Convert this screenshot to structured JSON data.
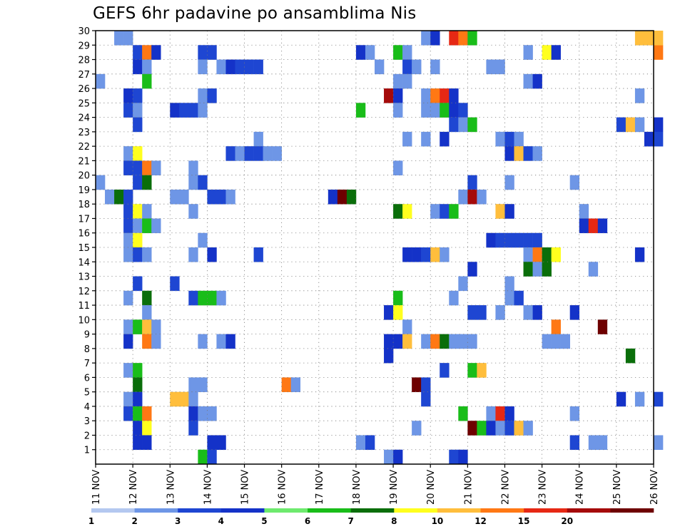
{
  "chart_data": {
    "type": "heatmap",
    "title": "GEFS 6hr padavine po ansamblima Nis",
    "xlabel": "",
    "ylabel": "",
    "x_ticks": [
      "11 NOV",
      "12 NOV",
      "13 NOV",
      "14 NOV",
      "15 NOV",
      "16 NOV",
      "17 NOV",
      "18 NOV",
      "19 NOV",
      "20 NOV",
      "21 NOV",
      "22 NOV",
      "23 NOV",
      "24 NOV",
      "25 NOV",
      "26 NOV"
    ],
    "y_ticks": [
      "1",
      "2",
      "3",
      "4",
      "5",
      "6",
      "7",
      "8",
      "9",
      "10",
      "11",
      "12",
      "13",
      "14",
      "15",
      "16",
      "17",
      "18",
      "19",
      "20",
      "21",
      "22",
      "23",
      "24",
      "25",
      "26",
      "27",
      "28",
      "29",
      "30"
    ],
    "xlim": [
      "11 NOV",
      "26 NOV"
    ],
    "ylim": [
      0,
      30
    ],
    "grid": true,
    "colorbar": {
      "labels": [
        "1",
        "2",
        "3",
        "4",
        "5",
        "6",
        "7",
        "8",
        "10",
        "12",
        "15",
        "20"
      ],
      "colors": [
        "#b4c8f0",
        "#6e96e6",
        "#1e46d2",
        "#1432c8",
        "#6eea6e",
        "#19bd19",
        "#0a6e0a",
        "#ffff1e",
        "#ffbe3c",
        "#ff7814",
        "#e62814",
        "#a50a0a",
        "#6e0000"
      ]
    },
    "cells": [
      [
        "11 NOV 12Z",
        30,
        1
      ],
      [
        "11 NOV 18Z",
        30,
        1
      ],
      [
        "12 NOV 00Z",
        29,
        2
      ],
      [
        "12 NOV 06Z",
        29,
        9
      ],
      [
        "12 NOV 12Z",
        29,
        3
      ],
      [
        "13 NOV 18Z",
        29,
        2
      ],
      [
        "14 NOV 00Z",
        29,
        2
      ],
      [
        "18 NOV 00Z",
        29,
        3
      ],
      [
        "18 NOV 06Z",
        29,
        1
      ],
      [
        "19 NOV 00Z",
        29,
        5
      ],
      [
        "19 NOV 06Z",
        29,
        1
      ],
      [
        "22 NOV 12Z",
        29,
        1
      ],
      [
        "23 NOV 00Z",
        29,
        7
      ],
      [
        "23 NOV 06Z",
        29,
        3
      ],
      [
        "26 NOV 00Z",
        29,
        9
      ],
      [
        "26 NOV 00Z",
        30,
        8
      ],
      [
        "25 NOV 12Z",
        30,
        8
      ],
      [
        "25 NOV 18Z",
        30,
        8
      ],
      [
        "19 NOV 18Z",
        30,
        1
      ],
      [
        "20 NOV 00Z",
        30,
        3
      ],
      [
        "20 NOV 12Z",
        30,
        10
      ],
      [
        "20 NOV 18Z",
        30,
        9
      ],
      [
        "21 NOV 00Z",
        30,
        5
      ],
      [
        "12 NOV 00Z",
        28,
        3
      ],
      [
        "12 NOV 06Z",
        28,
        1
      ],
      [
        "13 NOV 18Z",
        28,
        1
      ],
      [
        "14 NOV 06Z",
        28,
        1
      ],
      [
        "14 NOV 12Z",
        28,
        3
      ],
      [
        "14 NOV 18Z",
        28,
        2
      ],
      [
        "15 NOV 00Z",
        28,
        2
      ],
      [
        "15 NOV 06Z",
        28,
        2
      ],
      [
        "18 NOV 12Z",
        28,
        1
      ],
      [
        "19 NOV 06Z",
        28,
        2
      ],
      [
        "19 NOV 12Z",
        28,
        1
      ],
      [
        "20 NOV 00Z",
        28,
        1
      ],
      [
        "21 NOV 12Z",
        28,
        1
      ],
      [
        "21 NOV 18Z",
        28,
        1
      ],
      [
        "11 NOV 00Z",
        27,
        1
      ],
      [
        "12 NOV 06Z",
        27,
        5
      ],
      [
        "19 NOV 00Z",
        27,
        1
      ],
      [
        "19 NOV 06Z",
        27,
        1
      ],
      [
        "22 NOV 12Z",
        27,
        1
      ],
      [
        "22 NOV 18Z",
        27,
        3
      ],
      [
        "11 NOV 18Z",
        26,
        3
      ],
      [
        "12 NOV 00Z",
        26,
        2
      ],
      [
        "13 NOV 18Z",
        26,
        1
      ],
      [
        "14 NOV 00Z",
        26,
        2
      ],
      [
        "18 NOV 18Z",
        26,
        11
      ],
      [
        "19 NOV 00Z",
        26,
        3
      ],
      [
        "19 NOV 18Z",
        26,
        1
      ],
      [
        "20 NOV 00Z",
        26,
        9
      ],
      [
        "20 NOV 06Z",
        26,
        10
      ],
      [
        "20 NOV 12Z",
        26,
        3
      ],
      [
        "25 NOV 12Z",
        26,
        1
      ],
      [
        "11 NOV 18Z",
        25,
        2
      ],
      [
        "12 NOV 00Z",
        25,
        1
      ],
      [
        "13 NOV 00Z",
        25,
        3
      ],
      [
        "13 NOV 06Z",
        25,
        2
      ],
      [
        "13 NOV 12Z",
        25,
        2
      ],
      [
        "13 NOV 18Z",
        25,
        1
      ],
      [
        "18 NOV 00Z",
        25,
        5
      ],
      [
        "19 NOV 00Z",
        25,
        1
      ],
      [
        "19 NOV 18Z",
        25,
        1
      ],
      [
        "20 NOV 00Z",
        25,
        1
      ],
      [
        "20 NOV 06Z",
        25,
        5
      ],
      [
        "20 NOV 12Z",
        25,
        3
      ],
      [
        "20 NOV 18Z",
        25,
        2
      ],
      [
        "12 NOV 00Z",
        24,
        2
      ],
      [
        "20 NOV 12Z",
        24,
        2
      ],
      [
        "20 NOV 18Z",
        24,
        1
      ],
      [
        "21 NOV 00Z",
        24,
        5
      ],
      [
        "25 NOV 00Z",
        24,
        2
      ],
      [
        "25 NOV 06Z",
        24,
        8
      ],
      [
        "25 NOV 12Z",
        24,
        1
      ],
      [
        "26 NOV 00Z",
        24,
        3
      ],
      [
        "15 NOV 06Z",
        23,
        1
      ],
      [
        "19 NOV 06Z",
        23,
        1
      ],
      [
        "19 NOV 18Z",
        23,
        1
      ],
      [
        "20 NOV 06Z",
        23,
        3
      ],
      [
        "21 NOV 18Z",
        23,
        1
      ],
      [
        "22 NOV 00Z",
        23,
        2
      ],
      [
        "22 NOV 06Z",
        23,
        1
      ],
      [
        "25 NOV 18Z",
        23,
        3
      ],
      [
        "26 NOV 00Z",
        23,
        2
      ],
      [
        "11 NOV 18Z",
        22,
        1
      ],
      [
        "12 NOV 00Z",
        22,
        7
      ],
      [
        "14 NOV 12Z",
        22,
        2
      ],
      [
        "14 NOV 18Z",
        22,
        1
      ],
      [
        "15 NOV 00Z",
        22,
        2
      ],
      [
        "15 NOV 06Z",
        22,
        2
      ],
      [
        "15 NOV 12Z",
        22,
        1
      ],
      [
        "15 NOV 18Z",
        22,
        1
      ],
      [
        "22 NOV 00Z",
        22,
        3
      ],
      [
        "22 NOV 06Z",
        22,
        8
      ],
      [
        "22 NOV 12Z",
        22,
        2
      ],
      [
        "22 NOV 18Z",
        22,
        1
      ],
      [
        "11 NOV 18Z",
        21,
        2
      ],
      [
        "12 NOV 00Z",
        21,
        2
      ],
      [
        "12 NOV 06Z",
        21,
        9
      ],
      [
        "12 NOV 12Z",
        21,
        1
      ],
      [
        "13 NOV 12Z",
        21,
        1
      ],
      [
        "19 NOV 00Z",
        21,
        1
      ],
      [
        "11 NOV 00Z",
        20,
        1
      ],
      [
        "12 NOV 00Z",
        20,
        2
      ],
      [
        "12 NOV 06Z",
        20,
        6
      ],
      [
        "13 NOV 12Z",
        20,
        1
      ],
      [
        "13 NOV 18Z",
        20,
        2
      ],
      [
        "21 NOV 00Z",
        20,
        2
      ],
      [
        "22 NOV 00Z",
        20,
        1
      ],
      [
        "23 NOV 18Z",
        20,
        1
      ],
      [
        "11 NOV 06Z",
        19,
        1
      ],
      [
        "11 NOV 12Z",
        19,
        6
      ],
      [
        "11 NOV 18Z",
        19,
        2
      ],
      [
        "13 NOV 00Z",
        19,
        1
      ],
      [
        "13 NOV 06Z",
        19,
        1
      ],
      [
        "14 NOV 00Z",
        19,
        2
      ],
      [
        "14 NOV 06Z",
        19,
        2
      ],
      [
        "14 NOV 12Z",
        19,
        1
      ],
      [
        "17 NOV 06Z",
        19,
        3
      ],
      [
        "17 NOV 12Z",
        19,
        12
      ],
      [
        "17 NOV 18Z",
        19,
        6
      ],
      [
        "20 NOV 18Z",
        19,
        1
      ],
      [
        "21 NOV 00Z",
        19,
        11
      ],
      [
        "21 NOV 06Z",
        19,
        1
      ],
      [
        "11 NOV 18Z",
        18,
        2
      ],
      [
        "12 NOV 00Z",
        18,
        7
      ],
      [
        "12 NOV 06Z",
        18,
        1
      ],
      [
        "13 NOV 12Z",
        18,
        1
      ],
      [
        "19 NOV 00Z",
        18,
        6
      ],
      [
        "19 NOV 06Z",
        18,
        7
      ],
      [
        "20 NOV 00Z",
        18,
        1
      ],
      [
        "20 NOV 06Z",
        18,
        2
      ],
      [
        "20 NOV 12Z",
        18,
        5
      ],
      [
        "21 NOV 18Z",
        18,
        8
      ],
      [
        "22 NOV 00Z",
        18,
        3
      ],
      [
        "24 NOV 00Z",
        18,
        1
      ],
      [
        "11 NOV 18Z",
        17,
        2
      ],
      [
        "12 NOV 00Z",
        17,
        1
      ],
      [
        "12 NOV 06Z",
        17,
        5
      ],
      [
        "12 NOV 12Z",
        17,
        1
      ],
      [
        "24 NOV 00Z",
        17,
        3
      ],
      [
        "24 NOV 06Z",
        17,
        10
      ],
      [
        "24 NOV 12Z",
        17,
        3
      ],
      [
        "11 NOV 18Z",
        16,
        1
      ],
      [
        "12 NOV 00Z",
        16,
        7
      ],
      [
        "13 NOV 18Z",
        16,
        1
      ],
      [
        "22 NOV 00Z",
        16,
        2
      ],
      [
        "22 NOV 06Z",
        16,
        2
      ],
      [
        "22 NOV 12Z",
        16,
        2
      ],
      [
        "22 NOV 18Z",
        16,
        2
      ],
      [
        "21 NOV 12Z",
        16,
        3
      ],
      [
        "21 NOV 18Z",
        16,
        2
      ],
      [
        "11 NOV 18Z",
        15,
        1
      ],
      [
        "12 NOV 00Z",
        15,
        2
      ],
      [
        "12 NOV 06Z",
        15,
        1
      ],
      [
        "13 NOV 12Z",
        15,
        1
      ],
      [
        "14 NOV 00Z",
        15,
        3
      ],
      [
        "15 NOV 06Z",
        15,
        2
      ],
      [
        "19 NOV 06Z",
        15,
        3
      ],
      [
        "19 NOV 12Z",
        15,
        3
      ],
      [
        "19 NOV 18Z",
        15,
        2
      ],
      [
        "20 NOV 00Z",
        15,
        8
      ],
      [
        "20 NOV 06Z",
        15,
        1
      ],
      [
        "22 NOV 12Z",
        15,
        1
      ],
      [
        "22 NOV 18Z",
        15,
        9
      ],
      [
        "23 NOV 00Z",
        15,
        6
      ],
      [
        "23 NOV 06Z",
        15,
        7
      ],
      [
        "25 NOV 12Z",
        15,
        3
      ],
      [
        "22 NOV 12Z",
        14,
        6
      ],
      [
        "22 NOV 18Z",
        14,
        1
      ],
      [
        "23 NOV 00Z",
        14,
        6
      ],
      [
        "24 NOV 06Z",
        14,
        1
      ],
      [
        "21 NOV 00Z",
        14,
        3
      ],
      [
        "12 NOV 00Z",
        13,
        2
      ],
      [
        "13 NOV 00Z",
        13,
        2
      ],
      [
        "20 NOV 18Z",
        13,
        1
      ],
      [
        "22 NOV 00Z",
        13,
        1
      ],
      [
        "11 NOV 18Z",
        12,
        1
      ],
      [
        "12 NOV 06Z",
        12,
        6
      ],
      [
        "13 NOV 12Z",
        12,
        2
      ],
      [
        "13 NOV 18Z",
        12,
        5
      ],
      [
        "14 NOV 00Z",
        12,
        5
      ],
      [
        "14 NOV 06Z",
        12,
        1
      ],
      [
        "19 NOV 00Z",
        12,
        5
      ],
      [
        "20 NOV 12Z",
        12,
        1
      ],
      [
        "22 NOV 00Z",
        12,
        1
      ],
      [
        "22 NOV 06Z",
        12,
        2
      ],
      [
        "12 NOV 06Z",
        11,
        1
      ],
      [
        "18 NOV 18Z",
        11,
        3
      ],
      [
        "19 NOV 00Z",
        11,
        7
      ],
      [
        "21 NOV 00Z",
        11,
        2
      ],
      [
        "21 NOV 06Z",
        11,
        2
      ],
      [
        "21 NOV 18Z",
        11,
        1
      ],
      [
        "22 NOV 12Z",
        11,
        1
      ],
      [
        "22 NOV 18Z",
        11,
        3
      ],
      [
        "23 NOV 18Z",
        11,
        3
      ],
      [
        "11 NOV 18Z",
        10,
        1
      ],
      [
        "12 NOV 00Z",
        10,
        5
      ],
      [
        "12 NOV 06Z",
        10,
        8
      ],
      [
        "12 NOV 12Z",
        10,
        1
      ],
      [
        "19 NOV 06Z",
        10,
        1
      ],
      [
        "23 NOV 06Z",
        10,
        9
      ],
      [
        "24 NOV 12Z",
        10,
        12
      ],
      [
        "11 NOV 18Z",
        9,
        3
      ],
      [
        "12 NOV 06Z",
        9,
        9
      ],
      [
        "12 NOV 12Z",
        9,
        1
      ],
      [
        "13 NOV 18Z",
        9,
        1
      ],
      [
        "14 NOV 06Z",
        9,
        1
      ],
      [
        "14 NOV 12Z",
        9,
        3
      ],
      [
        "18 NOV 18Z",
        9,
        3
      ],
      [
        "19 NOV 00Z",
        9,
        3
      ],
      [
        "19 NOV 06Z",
        9,
        8
      ],
      [
        "19 NOV 18Z",
        9,
        1
      ],
      [
        "20 NOV 00Z",
        9,
        9
      ],
      [
        "20 NOV 06Z",
        9,
        6
      ],
      [
        "20 NOV 12Z",
        9,
        1
      ],
      [
        "20 NOV 18Z",
        9,
        1
      ],
      [
        "21 NOV 00Z",
        9,
        1
      ],
      [
        "23 NOV 00Z",
        9,
        1
      ],
      [
        "23 NOV 06Z",
        9,
        1
      ],
      [
        "23 NOV 12Z",
        9,
        1
      ],
      [
        "18 NOV 18Z",
        8,
        3
      ],
      [
        "25 NOV 06Z",
        8,
        6
      ],
      [
        "11 NOV 18Z",
        7,
        1
      ],
      [
        "12 NOV 00Z",
        7,
        5
      ],
      [
        "20 NOV 06Z",
        7,
        2
      ],
      [
        "21 NOV 00Z",
        7,
        5
      ],
      [
        "21 NOV 06Z",
        7,
        8
      ],
      [
        "12 NOV 00Z",
        6,
        6
      ],
      [
        "13 NOV 12Z",
        6,
        1
      ],
      [
        "13 NOV 18Z",
        6,
        1
      ],
      [
        "16 NOV 00Z",
        6,
        9
      ],
      [
        "16 NOV 06Z",
        6,
        1
      ],
      [
        "19 NOV 12Z",
        6,
        12
      ],
      [
        "19 NOV 18Z",
        6,
        2
      ],
      [
        "11 NOV 18Z",
        5,
        1
      ],
      [
        "12 NOV 00Z",
        5,
        3
      ],
      [
        "13 NOV 00Z",
        5,
        8
      ],
      [
        "13 NOV 06Z",
        5,
        8
      ],
      [
        "13 NOV 12Z",
        5,
        1
      ],
      [
        "19 NOV 18Z",
        5,
        2
      ],
      [
        "25 NOV 00Z",
        5,
        3
      ],
      [
        "25 NOV 12Z",
        5,
        1
      ],
      [
        "26 NOV 00Z",
        5,
        2
      ],
      [
        "11 NOV 18Z",
        4,
        2
      ],
      [
        "12 NOV 00Z",
        4,
        5
      ],
      [
        "12 NOV 06Z",
        4,
        9
      ],
      [
        "13 NOV 12Z",
        4,
        3
      ],
      [
        "13 NOV 18Z",
        4,
        1
      ],
      [
        "14 NOV 00Z",
        4,
        1
      ],
      [
        "20 NOV 18Z",
        4,
        5
      ],
      [
        "21 NOV 12Z",
        4,
        1
      ],
      [
        "21 NOV 18Z",
        4,
        10
      ],
      [
        "22 NOV 00Z",
        4,
        3
      ],
      [
        "23 NOV 18Z",
        4,
        1
      ],
      [
        "12 NOV 00Z",
        3,
        3
      ],
      [
        "12 NOV 06Z",
        3,
        7
      ],
      [
        "13 NOV 12Z",
        3,
        2
      ],
      [
        "19 NOV 12Z",
        3,
        1
      ],
      [
        "21 NOV 00Z",
        3,
        12
      ],
      [
        "21 NOV 06Z",
        3,
        5
      ],
      [
        "21 NOV 12Z",
        3,
        3
      ],
      [
        "21 NOV 18Z",
        3,
        1
      ],
      [
        "22 NOV 00Z",
        3,
        2
      ],
      [
        "22 NOV 06Z",
        3,
        8
      ],
      [
        "22 NOV 12Z",
        3,
        1
      ],
      [
        "12 NOV 00Z",
        2,
        3
      ],
      [
        "12 NOV 06Z",
        2,
        3
      ],
      [
        "14 NOV 00Z",
        2,
        3
      ],
      [
        "14 NOV 06Z",
        2,
        3
      ],
      [
        "18 NOV 00Z",
        2,
        1
      ],
      [
        "18 NOV 06Z",
        2,
        2
      ],
      [
        "23 NOV 18Z",
        2,
        2
      ],
      [
        "24 NOV 06Z",
        2,
        1
      ],
      [
        "24 NOV 12Z",
        2,
        1
      ],
      [
        "26 NOV 00Z",
        2,
        1
      ],
      [
        "13 NOV 18Z",
        1,
        5
      ],
      [
        "14 NOV 00Z",
        1,
        2
      ],
      [
        "18 NOV 18Z",
        1,
        1
      ],
      [
        "19 NOV 00Z",
        1,
        3
      ],
      [
        "20 NOV 12Z",
        1,
        2
      ],
      [
        "20 NOV 18Z",
        1,
        3
      ]
    ]
  }
}
